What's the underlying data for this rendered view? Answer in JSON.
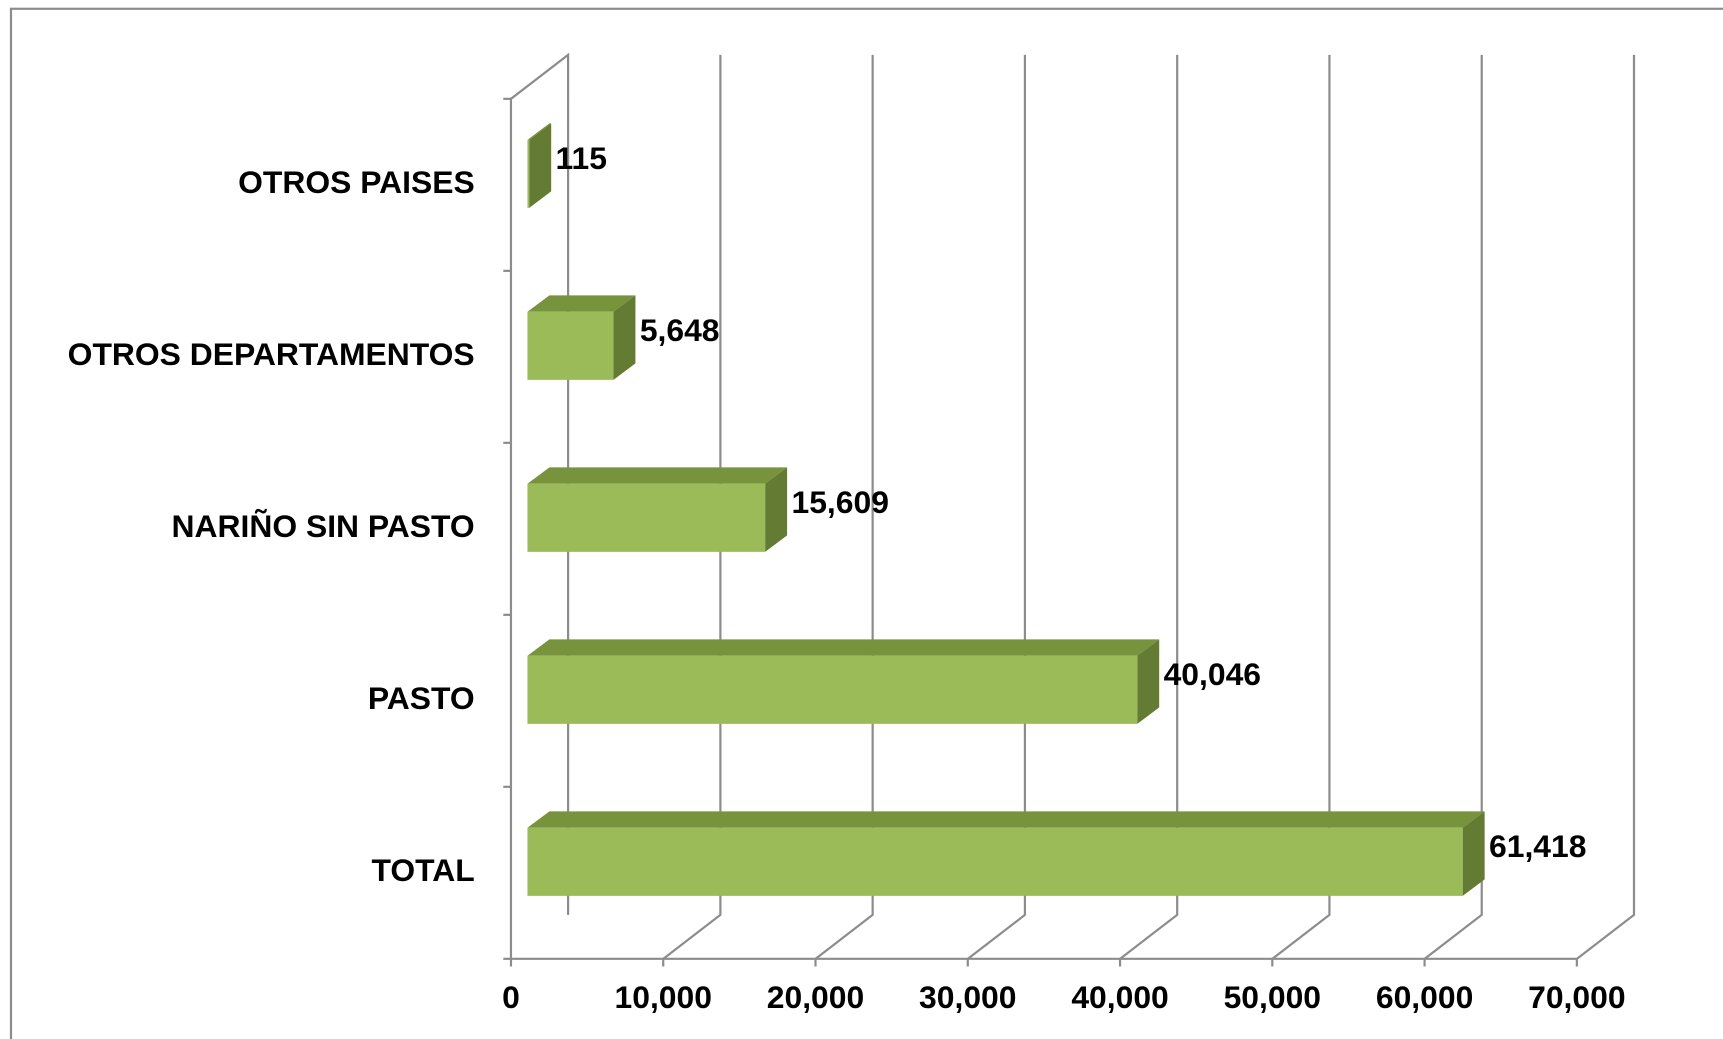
{
  "chart_data": {
    "type": "bar3d-horizontal",
    "categories": [
      "OTROS PAISES",
      "OTROS DEPARTAMENTOS",
      "NARIÑO SIN PASTO",
      "PASTO",
      "TOTAL"
    ],
    "values": [
      115,
      5648,
      15609,
      40046,
      61418
    ],
    "value_labels": [
      "115",
      "5,648",
      "15,609",
      "40,046",
      "61,418"
    ],
    "color": "#9bbb59",
    "xlim": [
      0,
      70000
    ],
    "xticks": [
      0,
      {
        "value": 10000,
        "label": "10,000"
      },
      {
        "value": 20000,
        "label": "20,000"
      },
      {
        "value": 30000,
        "label": "30,000"
      },
      {
        "value": 40000,
        "label": "40,000"
      },
      {
        "value": 50000,
        "label": "50,000"
      },
      {
        "value": 60000,
        "label": "60,000"
      },
      {
        "value": 70000,
        "label": "70,000"
      }
    ],
    "grid": true
  }
}
